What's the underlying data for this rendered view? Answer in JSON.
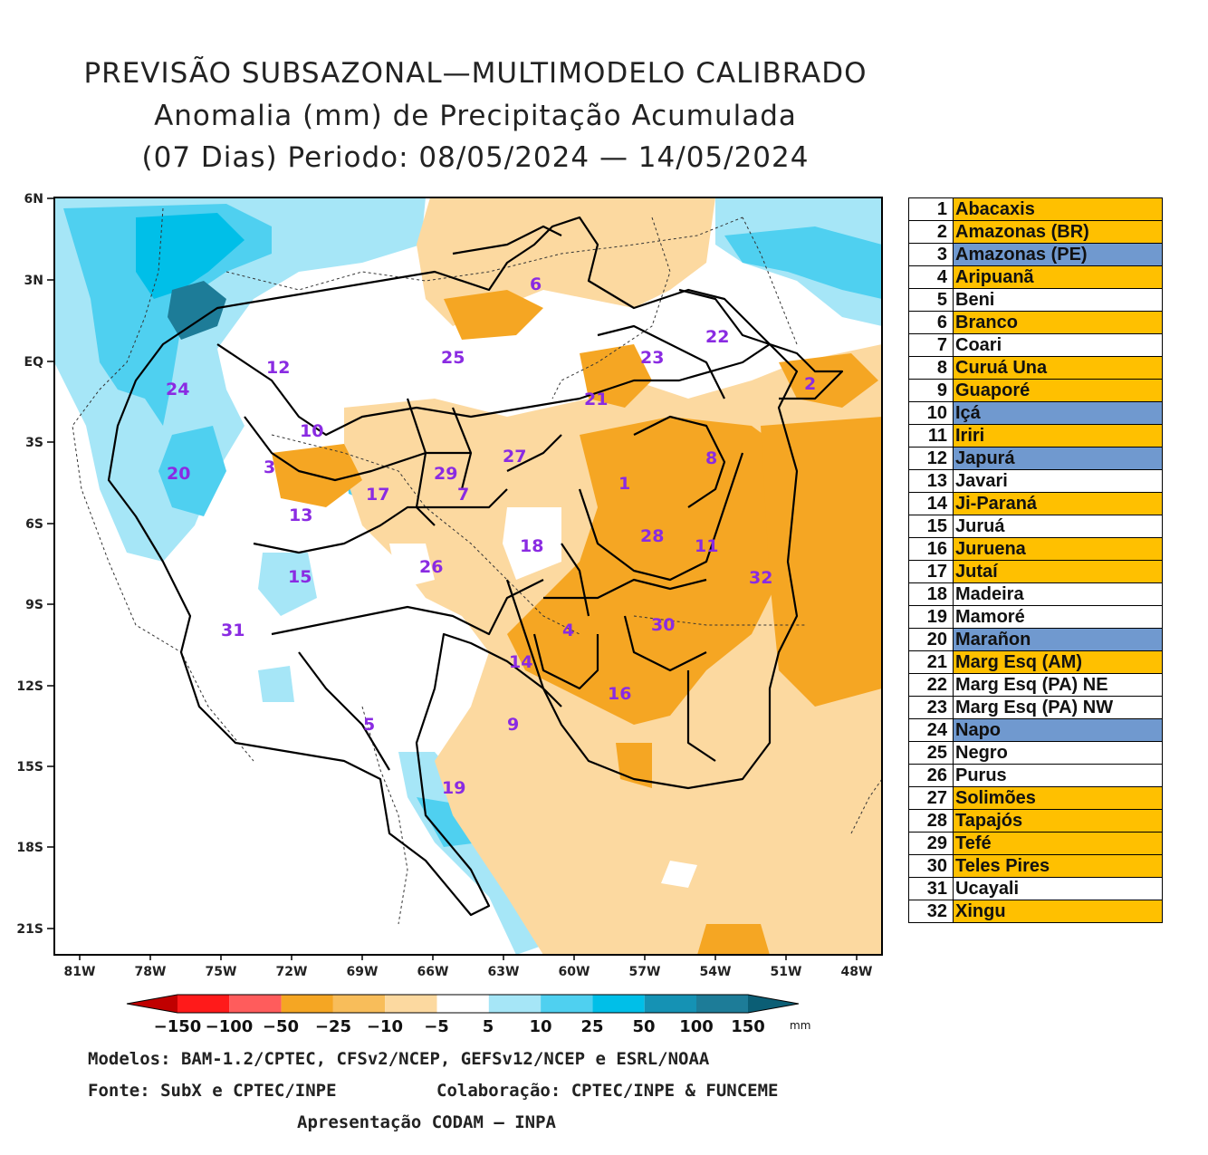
{
  "title": {
    "line1": "PREVISÃO SUBSAZONAL—MULTIMODELO CALIBRADO",
    "line2": "Anomalia (mm) de Precipitação Acumulada",
    "line3": "(07 Dias) Periodo: 08/05/2024 — 14/05/2024"
  },
  "axes": {
    "lat_labels": [
      "6N",
      "3N",
      "EQ",
      "3S",
      "6S",
      "9S",
      "12S",
      "15S",
      "18S",
      "21S"
    ],
    "lon_labels": [
      "81W",
      "78W",
      "75W",
      "72W",
      "69W",
      "66W",
      "63W",
      "60W",
      "57W",
      "54W",
      "51W",
      "48W"
    ]
  },
  "map": {
    "basin_numbers": [
      "1",
      "2",
      "3",
      "4",
      "5",
      "6",
      "7",
      "8",
      "9",
      "10",
      "11",
      "12",
      "13",
      "14",
      "15",
      "16",
      "17",
      "18",
      "19",
      "20",
      "21",
      "22",
      "23",
      "24",
      "25",
      "26",
      "27",
      "28",
      "29",
      "30",
      "31",
      "32"
    ],
    "colors": {
      "dry_strong": "#f5a623",
      "dry_light": "#fcd9a0",
      "neutral": "#ffffff",
      "wet_light": "#a6e6f7",
      "wet_mid": "#4fd0f0",
      "wet_strong": "#00bfe8",
      "wet_extreme": "#1d7c98",
      "outline": "#000000"
    }
  },
  "basins_legend": [
    {
      "n": "1",
      "name": "Abacaxis",
      "status": "dry"
    },
    {
      "n": "2",
      "name": "Amazonas (BR)",
      "status": "dry"
    },
    {
      "n": "3",
      "name": "Amazonas (PE)",
      "status": "wet"
    },
    {
      "n": "4",
      "name": "Aripuanã",
      "status": "dry"
    },
    {
      "n": "5",
      "name": "Beni",
      "status": "neutral"
    },
    {
      "n": "6",
      "name": "Branco",
      "status": "dry"
    },
    {
      "n": "7",
      "name": "Coari",
      "status": "neutral"
    },
    {
      "n": "8",
      "name": "Curuá Una",
      "status": "dry"
    },
    {
      "n": "9",
      "name": "Guaporé",
      "status": "dry"
    },
    {
      "n": "10",
      "name": "Içá",
      "status": "wet"
    },
    {
      "n": "11",
      "name": "Iriri",
      "status": "dry"
    },
    {
      "n": "12",
      "name": "Japurá",
      "status": "wet"
    },
    {
      "n": "13",
      "name": "Javari",
      "status": "neutral"
    },
    {
      "n": "14",
      "name": "Ji-Paraná",
      "status": "dry"
    },
    {
      "n": "15",
      "name": "Juruá",
      "status": "neutral"
    },
    {
      "n": "16",
      "name": "Juruena",
      "status": "dry"
    },
    {
      "n": "17",
      "name": "Jutaí",
      "status": "dry"
    },
    {
      "n": "18",
      "name": "Madeira",
      "status": "neutral"
    },
    {
      "n": "19",
      "name": "Mamoré",
      "status": "neutral"
    },
    {
      "n": "20",
      "name": "Marañon",
      "status": "wet"
    },
    {
      "n": "21",
      "name": "Marg Esq (AM)",
      "status": "dry"
    },
    {
      "n": "22",
      "name": "Marg Esq (PA) NE",
      "status": "neutral"
    },
    {
      "n": "23",
      "name": "Marg Esq (PA) NW",
      "status": "neutral"
    },
    {
      "n": "24",
      "name": "Napo",
      "status": "wet"
    },
    {
      "n": "25",
      "name": "Negro",
      "status": "neutral"
    },
    {
      "n": "26",
      "name": "Purus",
      "status": "neutral"
    },
    {
      "n": "27",
      "name": "Solimões",
      "status": "dry"
    },
    {
      "n": "28",
      "name": "Tapajós",
      "status": "dry"
    },
    {
      "n": "29",
      "name": "Tefé",
      "status": "dry"
    },
    {
      "n": "30",
      "name": "Teles Pires",
      "status": "dry"
    },
    {
      "n": "31",
      "name": "Ucayali",
      "status": "neutral"
    },
    {
      "n": "32",
      "name": "Xingu",
      "status": "dry"
    }
  ],
  "status_colors": {
    "dry": "#ffc000",
    "wet": "#7099cf",
    "neutral": "#ffffff"
  },
  "colorbar": {
    "labels": [
      "−150",
      "−100",
      "−50",
      "−25",
      "−10",
      "−5",
      "5",
      "10",
      "25",
      "50",
      "100",
      "150"
    ],
    "unit": "mm",
    "colors": [
      "#c00000",
      "#ff1a1a",
      "#ff5c5c",
      "#f5a623",
      "#f8bd5a",
      "#fcd9a0",
      "#ffffff",
      "#a6e6f7",
      "#4fd0f0",
      "#00bfe8",
      "#1592b4",
      "#1d7c98",
      "#0b5e75"
    ]
  },
  "credits": {
    "line1": "Modelos: BAM-1.2/CPTEC, CFSv2/NCEP, GEFSv12/NCEP e ESRL/NOAA",
    "line2a": "Fonte: SubX e CPTEC/INPE",
    "line2b": "Colaboração: CPTEC/INPE & FUNCEME",
    "line3": "Apresentação CODAM — INPA"
  }
}
